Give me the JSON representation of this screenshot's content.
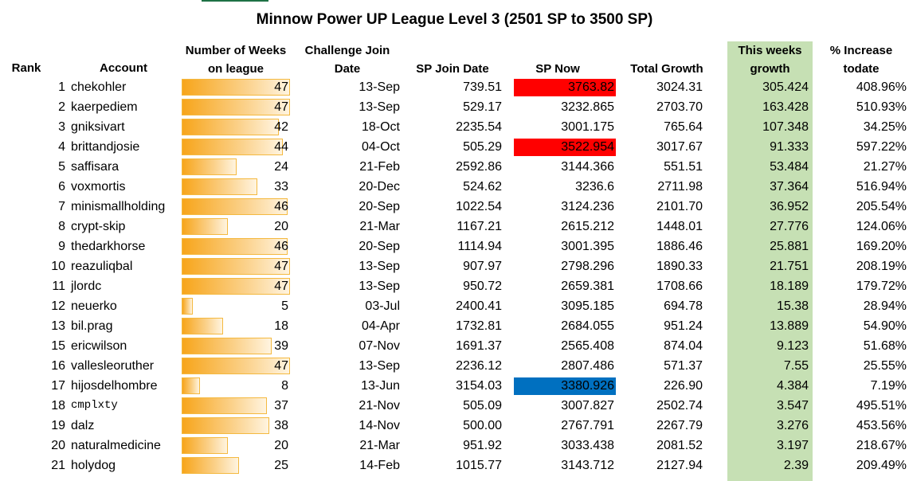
{
  "title": "Minnow Power UP League Level 3 (2501 SP to 3500 SP)",
  "headers": {
    "rank": "Rank",
    "account": "Account",
    "weeks_line1": "Number of Weeks",
    "weeks_line2": "on league",
    "join_line1": "Challenge Join",
    "join_line2": "Date",
    "sp_join": "SP Join Date",
    "sp_now": "SP Now",
    "total_growth": "Total Growth",
    "weekly_line1": "This weeks",
    "weekly_line2": "growth",
    "pct_line1": "% Increase",
    "pct_line2": "todate"
  },
  "colors": {
    "highlight_green": "#c6e0b4",
    "highlight_red": "#ff0000",
    "highlight_blue": "#0070c0",
    "bar_orange": "#f7a51b"
  },
  "max_weeks": 47,
  "rows": [
    {
      "rank": "1",
      "account": "chekohler",
      "weeks": 47,
      "join_date": "13-Sep",
      "sp_join": "739.51",
      "sp_now": "3763.82",
      "sp_now_highlight": "red",
      "total_growth": "3024.31",
      "week_growth": "305.424",
      "pct": "408.96%"
    },
    {
      "rank": "2",
      "account": "kaerpediem",
      "weeks": 47,
      "join_date": "13-Sep",
      "sp_join": "529.17",
      "sp_now": "3232.865",
      "sp_now_highlight": "",
      "total_growth": "2703.70",
      "week_growth": "163.428",
      "pct": "510.93%"
    },
    {
      "rank": "3",
      "account": "gniksivart",
      "weeks": 42,
      "join_date": "18-Oct",
      "sp_join": "2235.54",
      "sp_now": "3001.175",
      "sp_now_highlight": "",
      "total_growth": "765.64",
      "week_growth": "107.348",
      "pct": "34.25%"
    },
    {
      "rank": "4",
      "account": "brittandjosie",
      "weeks": 44,
      "join_date": "04-Oct",
      "sp_join": "505.29",
      "sp_now": "3522.954",
      "sp_now_highlight": "red",
      "total_growth": "3017.67",
      "week_growth": "91.333",
      "pct": "597.22%"
    },
    {
      "rank": "5",
      "account": "saffisara",
      "weeks": 24,
      "join_date": "21-Feb",
      "sp_join": "2592.86",
      "sp_now": "3144.366",
      "sp_now_highlight": "",
      "total_growth": "551.51",
      "week_growth": "53.484",
      "pct": "21.27%"
    },
    {
      "rank": "6",
      "account": "voxmortis",
      "weeks": 33,
      "join_date": "20-Dec",
      "sp_join": "524.62",
      "sp_now": "3236.6",
      "sp_now_highlight": "",
      "total_growth": "2711.98",
      "week_growth": "37.364",
      "pct": "516.94%"
    },
    {
      "rank": "7",
      "account": "minismallholding",
      "weeks": 46,
      "join_date": "20-Sep",
      "sp_join": "1022.54",
      "sp_now": "3124.236",
      "sp_now_highlight": "",
      "total_growth": "2101.70",
      "week_growth": "36.952",
      "pct": "205.54%"
    },
    {
      "rank": "8",
      "account": "crypt-skip",
      "weeks": 20,
      "join_date": "21-Mar",
      "sp_join": "1167.21",
      "sp_now": "2615.212",
      "sp_now_highlight": "",
      "total_growth": "1448.01",
      "week_growth": "27.776",
      "pct": "124.06%"
    },
    {
      "rank": "9",
      "account": "thedarkhorse",
      "weeks": 46,
      "join_date": "20-Sep",
      "sp_join": "1114.94",
      "sp_now": "3001.395",
      "sp_now_highlight": "",
      "total_growth": "1886.46",
      "week_growth": "25.881",
      "pct": "169.20%"
    },
    {
      "rank": "10",
      "account": "reazuliqbal",
      "weeks": 47,
      "join_date": "13-Sep",
      "sp_join": "907.97",
      "sp_now": "2798.296",
      "sp_now_highlight": "",
      "total_growth": "1890.33",
      "week_growth": "21.751",
      "pct": "208.19%"
    },
    {
      "rank": "11",
      "account": "jlordc",
      "weeks": 47,
      "join_date": "13-Sep",
      "sp_join": "950.72",
      "sp_now": "2659.381",
      "sp_now_highlight": "",
      "total_growth": "1708.66",
      "week_growth": "18.189",
      "pct": "179.72%"
    },
    {
      "rank": "12",
      "account": "neuerko",
      "weeks": 5,
      "join_date": "03-Jul",
      "sp_join": "2400.41",
      "sp_now": "3095.185",
      "sp_now_highlight": "",
      "total_growth": "694.78",
      "week_growth": "15.38",
      "pct": "28.94%"
    },
    {
      "rank": "13",
      "account": "bil.prag",
      "weeks": 18,
      "join_date": "04-Apr",
      "sp_join": "1732.81",
      "sp_now": "2684.055",
      "sp_now_highlight": "",
      "total_growth": "951.24",
      "week_growth": "13.889",
      "pct": "54.90%"
    },
    {
      "rank": "15",
      "account": "ericwilson",
      "weeks": 39,
      "join_date": "07-Nov",
      "sp_join": "1691.37",
      "sp_now": "2565.408",
      "sp_now_highlight": "",
      "total_growth": "874.04",
      "week_growth": "9.123",
      "pct": "51.68%"
    },
    {
      "rank": "16",
      "account": "vallesleoruther",
      "weeks": 47,
      "join_date": "13-Sep",
      "sp_join": "2236.12",
      "sp_now": "2807.486",
      "sp_now_highlight": "",
      "total_growth": "571.37",
      "week_growth": "7.55",
      "pct": "25.55%"
    },
    {
      "rank": "17",
      "account": "hijosdelhombre",
      "weeks": 8,
      "join_date": "13-Jun",
      "sp_join": "3154.03",
      "sp_now": "3380.926",
      "sp_now_highlight": "blue",
      "total_growth": "226.90",
      "week_growth": "4.384",
      "pct": "7.19%"
    },
    {
      "rank": "18",
      "account": "cmplxty",
      "weeks": 37,
      "join_date": "21-Nov",
      "sp_join": "505.09",
      "sp_now": "3007.827",
      "sp_now_highlight": "",
      "total_growth": "2502.74",
      "week_growth": "3.547",
      "pct": "495.51%"
    },
    {
      "rank": "19",
      "account": "dalz",
      "weeks": 38,
      "join_date": "14-Nov",
      "sp_join": "500.00",
      "sp_now": "2767.791",
      "sp_now_highlight": "",
      "total_growth": "2267.79",
      "week_growth": "3.276",
      "pct": "453.56%"
    },
    {
      "rank": "20",
      "account": "naturalmedicine",
      "weeks": 20,
      "join_date": "21-Mar",
      "sp_join": "951.92",
      "sp_now": "3033.438",
      "sp_now_highlight": "",
      "total_growth": "2081.52",
      "week_growth": "3.197",
      "pct": "218.67%"
    },
    {
      "rank": "21",
      "account": "holydog",
      "weeks": 25,
      "join_date": "14-Feb",
      "sp_join": "1015.77",
      "sp_now": "3143.712",
      "sp_now_highlight": "",
      "total_growth": "2127.94",
      "week_growth": "2.39",
      "pct": "209.49%"
    }
  ]
}
